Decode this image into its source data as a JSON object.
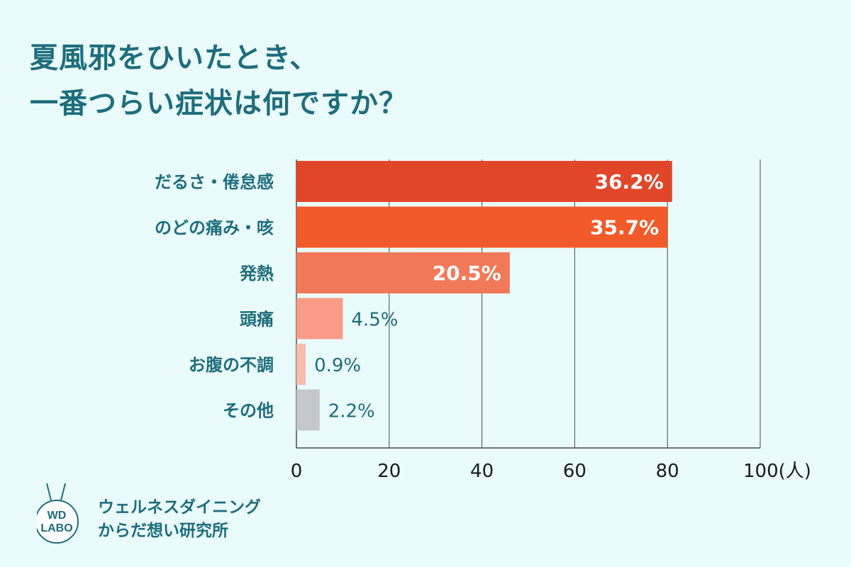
{
  "title": {
    "line1": "夏風邪をひいたとき、",
    "line2": "一番つらい症状は何ですか？"
  },
  "chart_data": {
    "type": "bar",
    "orientation": "horizontal",
    "categories": [
      "だるさ・倦怠感",
      "のどの痛み・咳",
      "発熱",
      "頭痛",
      "お腹の不調",
      "その他"
    ],
    "values": [
      81,
      80,
      46,
      10,
      2,
      5
    ],
    "percent_labels": [
      "36.2%",
      "35.7%",
      "20.5%",
      "4.5%",
      "0.9%",
      "2.2%"
    ],
    "label_inside": [
      true,
      true,
      true,
      false,
      false,
      false
    ],
    "colors": [
      "#e2462a",
      "#f25a2a",
      "#f2785a",
      "#f99c87",
      "#f9bab0",
      "#c4c7cb"
    ],
    "xlim": [
      0,
      100
    ],
    "xticks": [
      0,
      20,
      40,
      60,
      80,
      100
    ],
    "xtick_labels": [
      "0",
      "20",
      "40",
      "60",
      "80",
      "100(人)"
    ],
    "grid": true
  },
  "logo": {
    "mark_line1": "WD",
    "mark_line2": "LABO",
    "name_line1": "ウェルネスダイニング",
    "name_line2": "からだ想い研究所"
  },
  "colors": {
    "background": "#e9fbfb",
    "accent": "#1f6d7c"
  }
}
